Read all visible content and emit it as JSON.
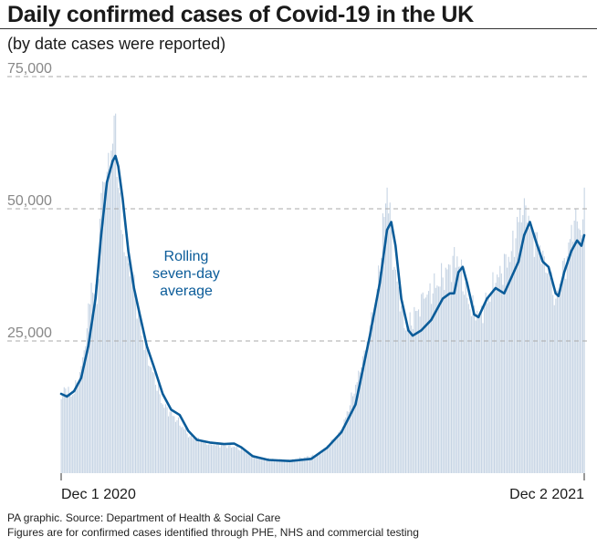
{
  "header": {
    "title": "Daily confirmed cases of Covid-19 in the UK",
    "subtitle": "(by date cases were reported)"
  },
  "footer": {
    "source": "PA graphic. Source: Department of Health & Social Care",
    "note": "Figures are for confirmed cases identified through PHE, NHS and commercial testing"
  },
  "colors": {
    "line": "#0b5c99",
    "bars": "#c6d4e4",
    "grid": "#aaaaaa",
    "axis_text": "#888888",
    "annotation": "#0b5c99"
  },
  "chart_data": {
    "type": "bar",
    "title": "Daily confirmed cases of Covid-19 in the UK",
    "subtitle": "(by date cases were reported)",
    "xlabel": "",
    "ylabel": "",
    "x_tick_labels": [
      "Dec 1 2020",
      "Dec 2 2021"
    ],
    "y_ticks": [
      25000,
      50000,
      75000
    ],
    "y_tick_labels": [
      "25,000",
      "50,000",
      "75,000"
    ],
    "ylim": [
      0,
      75000
    ],
    "grid": "horizontal dashed",
    "annotations": [
      {
        "lines": [
          "Rolling",
          "seven-day",
          "average"
        ],
        "series": "Rolling seven-day average"
      }
    ],
    "series": [
      {
        "name": "Rolling seven-day average",
        "type": "line",
        "points": [
          [
            "2020-12-01",
            15000
          ],
          [
            "2020-12-05",
            14500
          ],
          [
            "2020-12-10",
            15500
          ],
          [
            "2020-12-15",
            18000
          ],
          [
            "2020-12-20",
            24000
          ],
          [
            "2020-12-25",
            33000
          ],
          [
            "2020-12-29",
            45000
          ],
          [
            "2021-01-02",
            55000
          ],
          [
            "2021-01-06",
            59000
          ],
          [
            "2021-01-08",
            60000
          ],
          [
            "2021-01-10",
            58000
          ],
          [
            "2021-01-13",
            52000
          ],
          [
            "2021-01-17",
            42000
          ],
          [
            "2021-01-21",
            35000
          ],
          [
            "2021-01-25",
            30000
          ],
          [
            "2021-01-30",
            24000
          ],
          [
            "2021-02-04",
            20000
          ],
          [
            "2021-02-10",
            15000
          ],
          [
            "2021-02-16",
            12000
          ],
          [
            "2021-02-22",
            11000
          ],
          [
            "2021-02-28",
            8000
          ],
          [
            "2021-03-06",
            6300
          ],
          [
            "2021-03-15",
            5800
          ],
          [
            "2021-03-25",
            5500
          ],
          [
            "2021-04-01",
            5600
          ],
          [
            "2021-04-06",
            4900
          ],
          [
            "2021-04-14",
            3200
          ],
          [
            "2021-04-25",
            2500
          ],
          [
            "2021-05-10",
            2300
          ],
          [
            "2021-05-25",
            2700
          ],
          [
            "2021-06-05",
            4800
          ],
          [
            "2021-06-15",
            7700
          ],
          [
            "2021-06-25",
            13000
          ],
          [
            "2021-07-05",
            26000
          ],
          [
            "2021-07-12",
            36000
          ],
          [
            "2021-07-17",
            46000
          ],
          [
            "2021-07-20",
            47500
          ],
          [
            "2021-07-23",
            43000
          ],
          [
            "2021-07-27",
            33000
          ],
          [
            "2021-08-01",
            27000
          ],
          [
            "2021-08-04",
            26000
          ],
          [
            "2021-08-10",
            27000
          ],
          [
            "2021-08-17",
            29000
          ],
          [
            "2021-08-25",
            33000
          ],
          [
            "2021-08-30",
            34000
          ],
          [
            "2021-09-02",
            34000
          ],
          [
            "2021-09-05",
            38000
          ],
          [
            "2021-09-08",
            39000
          ],
          [
            "2021-09-11",
            36000
          ],
          [
            "2021-09-16",
            30000
          ],
          [
            "2021-09-19",
            29500
          ],
          [
            "2021-09-25",
            33000
          ],
          [
            "2021-10-01",
            35000
          ],
          [
            "2021-10-07",
            34000
          ],
          [
            "2021-10-12",
            37000
          ],
          [
            "2021-10-17",
            40000
          ],
          [
            "2021-10-21",
            45000
          ],
          [
            "2021-10-25",
            47500
          ],
          [
            "2021-10-29",
            44000
          ],
          [
            "2021-11-03",
            40000
          ],
          [
            "2021-11-07",
            39000
          ],
          [
            "2021-11-12",
            34000
          ],
          [
            "2021-11-14",
            33500
          ],
          [
            "2021-11-18",
            38000
          ],
          [
            "2021-11-23",
            42000
          ],
          [
            "2021-11-27",
            44000
          ],
          [
            "2021-11-30",
            43000
          ],
          [
            "2021-12-02",
            45000
          ]
        ]
      },
      {
        "name": "Daily confirmed cases",
        "type": "bar",
        "points": [
          [
            "2020-12-01",
            14000
          ],
          [
            "2020-12-04",
            16000
          ],
          [
            "2020-12-08",
            14500
          ],
          [
            "2020-12-13",
            17500
          ],
          [
            "2020-12-18",
            24000
          ],
          [
            "2020-12-22",
            36000
          ],
          [
            "2020-12-26",
            32000
          ],
          [
            "2020-12-29",
            53000
          ],
          [
            "2020-12-31",
            55000
          ],
          [
            "2021-01-02",
            57000
          ],
          [
            "2021-01-05",
            61000
          ],
          [
            "2021-01-08",
            68000
          ],
          [
            "2021-01-10",
            54000
          ],
          [
            "2021-01-12",
            46000
          ],
          [
            "2021-01-16",
            41000
          ],
          [
            "2021-01-20",
            38000
          ],
          [
            "2021-01-26",
            26000
          ],
          [
            "2021-02-02",
            20000
          ],
          [
            "2021-02-10",
            13000
          ],
          [
            "2021-02-20",
            10000
          ],
          [
            "2021-03-01",
            7000
          ],
          [
            "2021-03-15",
            5500
          ],
          [
            "2021-04-01",
            5000
          ],
          [
            "2021-04-20",
            2800
          ],
          [
            "2021-05-10",
            2400
          ],
          [
            "2021-05-31",
            3600
          ],
          [
            "2021-06-15",
            8000
          ],
          [
            "2021-06-29",
            20000
          ],
          [
            "2021-07-09",
            32000
          ],
          [
            "2021-07-16",
            51000
          ],
          [
            "2021-07-17",
            54000
          ],
          [
            "2021-07-22",
            39000
          ],
          [
            "2021-07-30",
            27000
          ],
          [
            "2021-08-12",
            33000
          ],
          [
            "2021-08-25",
            37000
          ],
          [
            "2021-09-04",
            41000
          ],
          [
            "2021-09-12",
            32000
          ],
          [
            "2021-09-20",
            30000
          ],
          [
            "2021-10-01",
            36000
          ],
          [
            "2021-10-12",
            42000
          ],
          [
            "2021-10-21",
            52000
          ],
          [
            "2021-10-26",
            46000
          ],
          [
            "2021-11-04",
            41000
          ],
          [
            "2021-11-12",
            33000
          ],
          [
            "2021-11-20",
            41000
          ],
          [
            "2021-11-26",
            50000
          ],
          [
            "2021-11-30",
            45000
          ],
          [
            "2021-12-01",
            48000
          ],
          [
            "2021-12-02",
            54000
          ]
        ]
      }
    ]
  }
}
